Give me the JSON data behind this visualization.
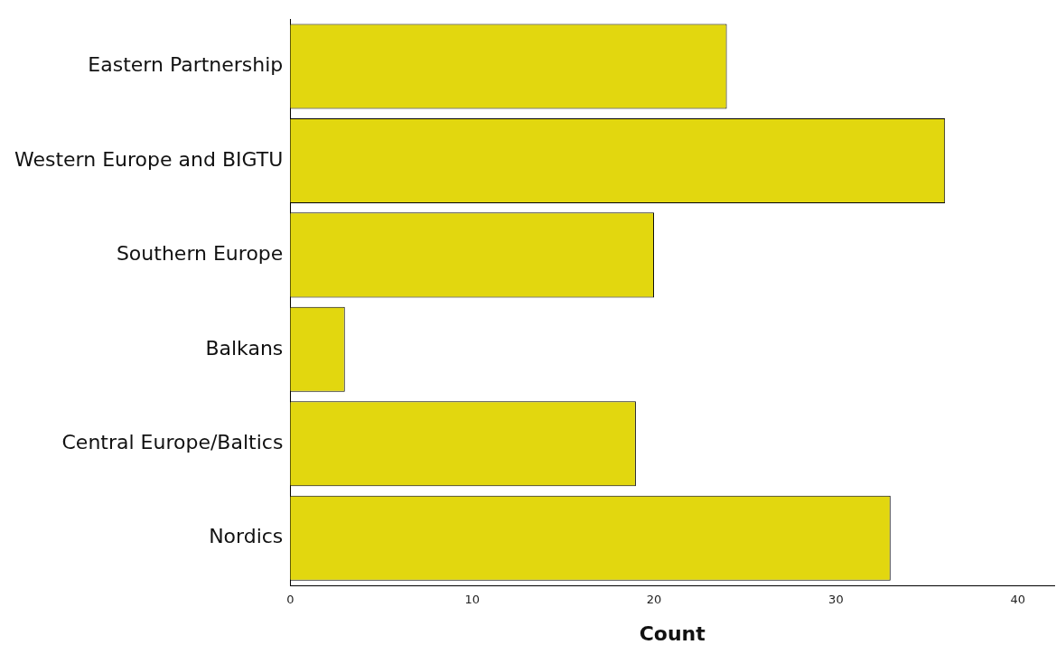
{
  "chart_data": {
    "type": "bar",
    "orientation": "horizontal",
    "xlabel": "Count",
    "categories": [
      "Eastern Partnership",
      "Western Europe and BIGTU",
      "Southern Europe",
      "Balkans",
      "Central Europe/Baltics",
      "Nordics"
    ],
    "values": [
      24,
      36,
      20,
      3,
      19,
      33
    ],
    "color": "#e2d70f",
    "xlim": [
      0,
      42
    ],
    "xticks": [
      0,
      10,
      20,
      30,
      40
    ],
    "grid": false,
    "legend": false
  }
}
